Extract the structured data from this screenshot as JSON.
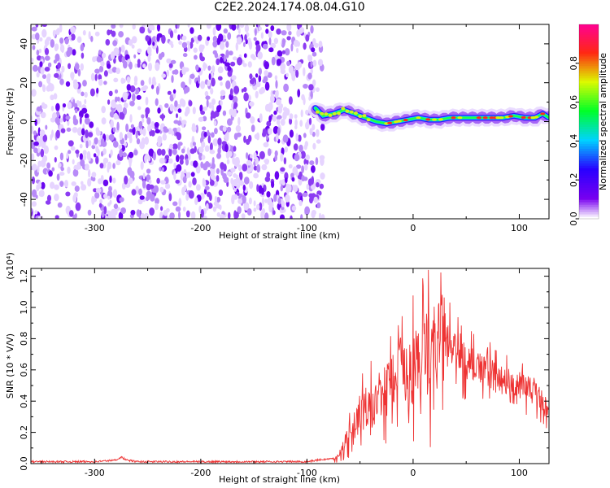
{
  "title": "C2E2.2024.174.08.04.G10",
  "chart_data": [
    {
      "type": "heatmap",
      "xlabel": "Height of straight line (km)",
      "ylabel": "Frequency (Hz)",
      "xlim": [
        -360,
        128
      ],
      "ylim": [
        -50,
        50
      ],
      "xticks": [
        -300,
        -200,
        -100,
        0,
        100
      ],
      "yticks": [
        -40,
        -20,
        0,
        20,
        40
      ],
      "noise_region_x": [
        -360,
        -88
      ],
      "signal_track": {
        "x": [
          -92,
          -85,
          -75,
          -65,
          -55,
          -45,
          -35,
          -25,
          -15,
          -5,
          5,
          15,
          25,
          35,
          45,
          55,
          65,
          75,
          85,
          95,
          105,
          115,
          122,
          128
        ],
        "freq": [
          7,
          3,
          4,
          6,
          4,
          2,
          0,
          -1,
          0,
          1,
          2,
          1,
          1,
          2,
          2,
          2,
          2,
          2,
          2,
          3,
          2,
          2,
          4,
          2
        ]
      },
      "colorbar": {
        "label": "Normalized spectral amplitude",
        "range": [
          0,
          1
        ],
        "ticks": [
          "0.0",
          "0.2",
          "0.4",
          "0.6",
          "0.8"
        ]
      },
      "grid": false
    },
    {
      "type": "line",
      "xlabel": "Height of straight line (km)",
      "ylabel": "SNR (10 * V/V)",
      "y_multiplier_label": "(x10⁴)",
      "xlim": [
        -360,
        128
      ],
      "ylim": [
        0,
        1.25
      ],
      "xticks": [
        -300,
        -200,
        -100,
        0,
        100
      ],
      "yticks": [
        "0.0",
        "0.2",
        "0.4",
        "0.6",
        "0.8",
        "1.0",
        "1.2"
      ],
      "color": "#ee3333",
      "series": [
        {
          "x": [
            -360,
            -340,
            -320,
            -300,
            -290,
            -280,
            -275,
            -270,
            -260,
            -240,
            -220,
            -200,
            -180,
            -160,
            -140,
            -120,
            -100,
            -90,
            -75,
            -68,
            -60,
            -50,
            -40,
            -30,
            -20,
            -15,
            -12,
            -8,
            0,
            10,
            20,
            30,
            40,
            50,
            60,
            70,
            80,
            90,
            100,
            110,
            115,
            120,
            125,
            128
          ],
          "y": [
            0.01,
            0.01,
            0.01,
            0.01,
            0.015,
            0.02,
            0.04,
            0.02,
            0.01,
            0.01,
            0.01,
            0.01,
            0.01,
            0.01,
            0.01,
            0.01,
            0.01,
            0.02,
            0.03,
            0.07,
            0.2,
            0.3,
            0.35,
            0.45,
            0.5,
            0.7,
            0.9,
            0.6,
            0.6,
            0.7,
            0.75,
            0.8,
            0.7,
            0.65,
            0.62,
            0.58,
            0.55,
            0.52,
            0.5,
            0.48,
            0.45,
            0.42,
            0.35,
            0.32
          ]
        }
      ],
      "grid": false
    }
  ]
}
